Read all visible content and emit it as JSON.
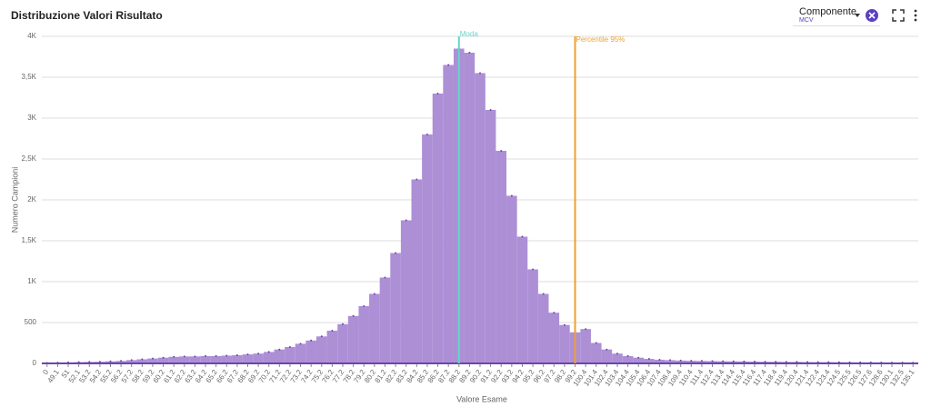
{
  "header": {
    "title": "Distribuzione Valori Risultato",
    "filter": {
      "label": "Componente",
      "value": "MCV"
    }
  },
  "chart_data": {
    "type": "bar",
    "x_label": "Valore Esame",
    "y_label": "Numero Campioni",
    "categories": [
      "0",
      "49.1",
      "51",
      "52.1",
      "53.2",
      "54.2",
      "55.2",
      "56.2",
      "57.2",
      "58.2",
      "59.2",
      "60.2",
      "61.2",
      "62.2",
      "63.2",
      "64.2",
      "65.2",
      "66.2",
      "67.2",
      "68.2",
      "69.2",
      "70.2",
      "71.2",
      "72.2",
      "73.2",
      "74.2",
      "75.2",
      "76.2",
      "77.2",
      "78.2",
      "79.2",
      "80.2",
      "81.2",
      "82.2",
      "83.2",
      "84.2",
      "85.2",
      "86.2",
      "87.2",
      "88.2",
      "89.2",
      "90.2",
      "91.2",
      "92.2",
      "93.2",
      "94.2",
      "95.2",
      "96.2",
      "97.2",
      "98.2",
      "99.2",
      "100.4",
      "101.4",
      "102.4",
      "103.4",
      "104.4",
      "105.4",
      "106.4",
      "107.4",
      "108.4",
      "109.4",
      "110.4",
      "111.4",
      "112.4",
      "113.4",
      "114.4",
      "115.4",
      "116.4",
      "117.4",
      "118.4",
      "119.4",
      "120.4",
      "121.4",
      "122.4",
      "123.4",
      "124.5",
      "125.5",
      "126.5",
      "127.6",
      "128.6",
      "130.1",
      "132.5",
      "135.1"
    ],
    "values": [
      5,
      10,
      12,
      15,
      18,
      20,
      25,
      30,
      40,
      50,
      60,
      70,
      80,
      85,
      85,
      90,
      90,
      95,
      100,
      110,
      120,
      140,
      170,
      200,
      240,
      280,
      330,
      400,
      480,
      580,
      700,
      850,
      1050,
      1350,
      1750,
      2250,
      2800,
      3300,
      3650,
      3850,
      3800,
      3550,
      3100,
      2600,
      2050,
      1550,
      1150,
      850,
      620,
      470,
      380,
      420,
      250,
      170,
      120,
      90,
      70,
      55,
      45,
      40,
      35,
      32,
      30,
      28,
      26,
      25,
      24,
      22,
      20,
      20,
      18,
      18,
      16,
      15,
      15,
      14,
      13,
      12,
      12,
      11,
      10,
      10,
      8
    ],
    "color": "#ad8fd6",
    "ylim": [
      0,
      4000
    ],
    "yticks": [
      0,
      500,
      {
        "value": 1000,
        "label": "1K"
      },
      {
        "value": 1500,
        "label": "1,5K"
      },
      {
        "value": 2000,
        "label": "2K"
      },
      {
        "value": 2500,
        "label": "2,5K"
      },
      {
        "value": 3000,
        "label": "3K"
      },
      {
        "value": 3500,
        "label": "3,5K"
      },
      {
        "value": 4000,
        "label": "4K"
      }
    ],
    "grid": true,
    "annotations": [
      {
        "text": "Moda",
        "category": "88.2",
        "color": "#5fd8c6"
      },
      {
        "text": "Percentile 95%",
        "category": "99.2",
        "color": "#f0a02c"
      }
    ]
  }
}
